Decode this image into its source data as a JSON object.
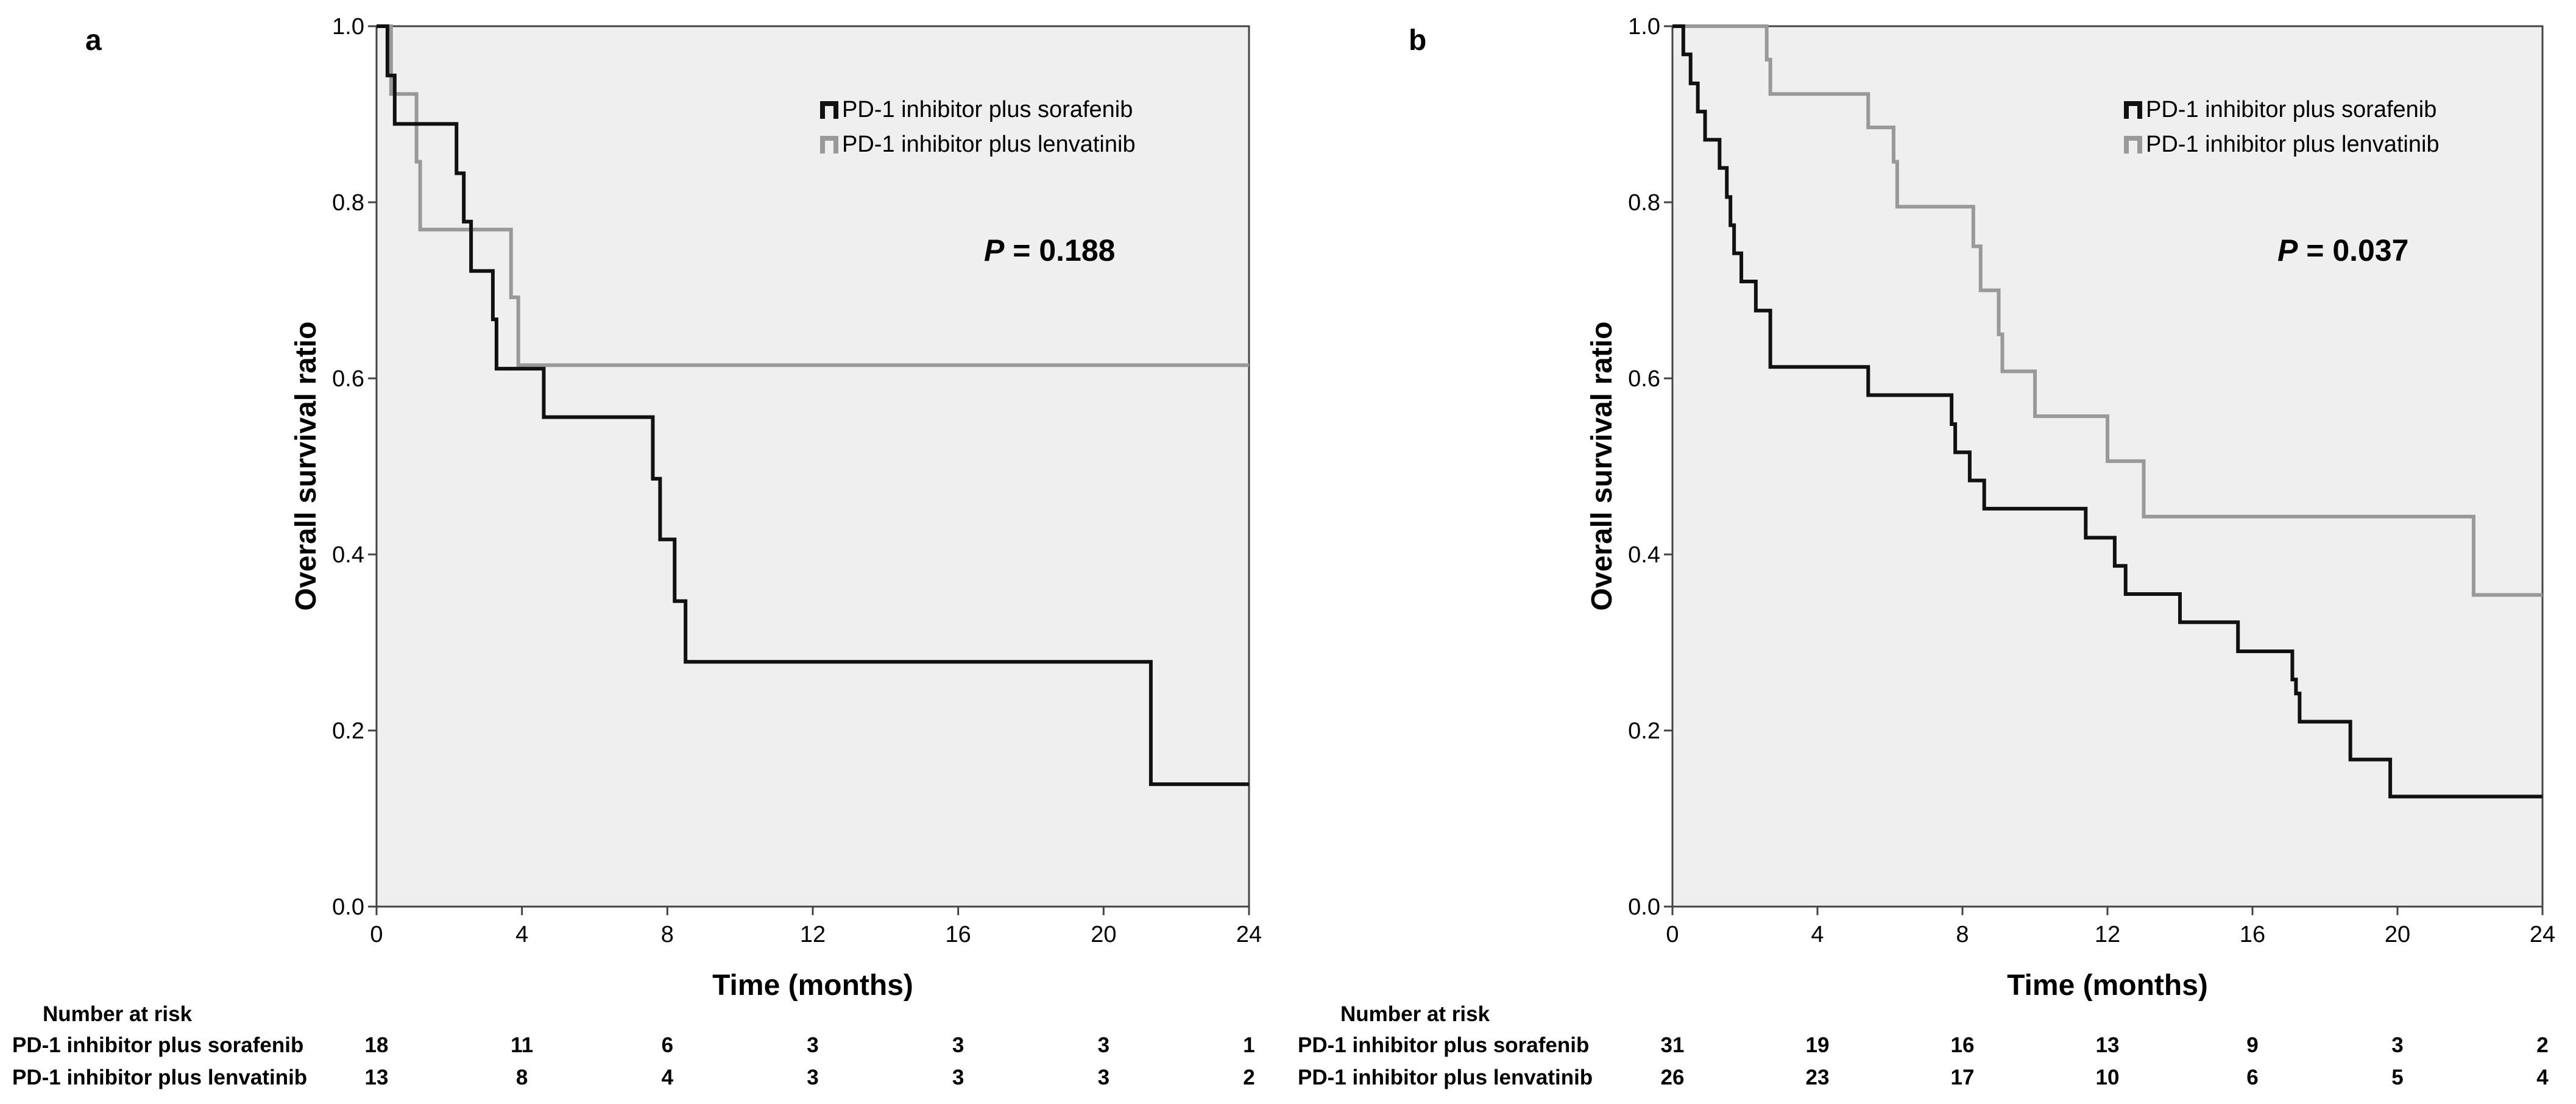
{
  "chart_data": [
    {
      "type": "line",
      "subtype": "kaplan-meier",
      "panel_label": "a",
      "xlabel": "Time (months)",
      "ylabel": "Overall survival ratio",
      "xlim": [
        0,
        24
      ],
      "ylim": [
        0,
        1.0
      ],
      "x_ticks": [
        0,
        4,
        8,
        12,
        16,
        20,
        24
      ],
      "y_ticks": [
        0.0,
        0.2,
        0.4,
        0.6,
        0.8,
        1.0
      ],
      "x_tick_labels": [
        "0",
        "4",
        "8",
        "12",
        "16",
        "20",
        "24"
      ],
      "y_tick_labels": [
        "0.0",
        "0.2",
        "0.4",
        "0.6",
        "0.8",
        "1.0"
      ],
      "p_value": {
        "label": "P",
        "text": " = 0.188"
      },
      "legend_position": "top-right",
      "series": [
        {
          "name": "PD-1 inhibitor plus sorafenib",
          "color": "#111111",
          "steps": [
            [
              0,
              1.0
            ],
            [
              0.3,
              0.944
            ],
            [
              0.5,
              0.889
            ],
            [
              2.2,
              0.833
            ],
            [
              2.4,
              0.778
            ],
            [
              2.6,
              0.722
            ],
            [
              3.2,
              0.667
            ],
            [
              3.3,
              0.611
            ],
            [
              4.6,
              0.556
            ],
            [
              7.6,
              0.486
            ],
            [
              7.8,
              0.417
            ],
            [
              8.2,
              0.347
            ],
            [
              8.5,
              0.278
            ],
            [
              21.3,
              0.139
            ],
            [
              24,
              0.139
            ]
          ]
        },
        {
          "name": "PD-1 inhibitor plus lenvatinib",
          "color": "#999999",
          "steps": [
            [
              0,
              1.0
            ],
            [
              0.4,
              0.923
            ],
            [
              1.1,
              0.846
            ],
            [
              1.2,
              0.769
            ],
            [
              3.7,
              0.692
            ],
            [
              3.9,
              0.615
            ],
            [
              24,
              0.615
            ]
          ]
        }
      ],
      "risk_table": {
        "title": "Number at risk",
        "times": [
          0,
          4,
          8,
          12,
          16,
          20,
          24
        ],
        "rows": [
          {
            "label": "PD-1 inhibitor plus sorafenib",
            "values": [
              "18",
              "11",
              "6",
              "3",
              "3",
              "3",
              "1"
            ]
          },
          {
            "label": "PD-1 inhibitor plus lenvatinib",
            "values": [
              "13",
              "8",
              "4",
              "3",
              "3",
              "3",
              "2"
            ]
          }
        ]
      }
    },
    {
      "type": "line",
      "subtype": "kaplan-meier",
      "panel_label": "b",
      "xlabel": "Time (months)",
      "ylabel": "Overall survival ratio",
      "xlim": [
        0,
        24
      ],
      "ylim": [
        0,
        1.0
      ],
      "x_ticks": [
        0,
        4,
        8,
        12,
        16,
        20,
        24
      ],
      "y_ticks": [
        0.0,
        0.2,
        0.4,
        0.6,
        0.8,
        1.0
      ],
      "x_tick_labels": [
        "0",
        "4",
        "8",
        "12",
        "16",
        "20",
        "24"
      ],
      "y_tick_labels": [
        "0.0",
        "0.2",
        "0.4",
        "0.6",
        "0.8",
        "1.0"
      ],
      "p_value": {
        "label": "P",
        "text": " = 0.037"
      },
      "legend_position": "top-right",
      "series": [
        {
          "name": "PD-1 inhibitor plus sorafenib",
          "color": "#111111",
          "steps": [
            [
              0,
              1.0
            ],
            [
              0.3,
              0.968
            ],
            [
              0.5,
              0.935
            ],
            [
              0.7,
              0.903
            ],
            [
              0.9,
              0.871
            ],
            [
              1.3,
              0.839
            ],
            [
              1.5,
              0.806
            ],
            [
              1.6,
              0.774
            ],
            [
              1.7,
              0.742
            ],
            [
              1.9,
              0.71
            ],
            [
              2.3,
              0.677
            ],
            [
              2.7,
              0.613
            ],
            [
              5.4,
              0.581
            ],
            [
              7.7,
              0.548
            ],
            [
              7.8,
              0.516
            ],
            [
              8.2,
              0.484
            ],
            [
              8.6,
              0.452
            ],
            [
              11.4,
              0.419
            ],
            [
              12.2,
              0.387
            ],
            [
              12.5,
              0.355
            ],
            [
              14.0,
              0.323
            ],
            [
              15.6,
              0.29
            ],
            [
              17.1,
              0.258
            ],
            [
              17.2,
              0.242
            ],
            [
              17.3,
              0.21
            ],
            [
              18.7,
              0.167
            ],
            [
              19.8,
              0.125
            ],
            [
              24,
              0.125
            ]
          ]
        },
        {
          "name": "PD-1 inhibitor plus lenvatinib",
          "color": "#999999",
          "steps": [
            [
              0,
              1.0
            ],
            [
              2.6,
              0.962
            ],
            [
              2.7,
              0.923
            ],
            [
              5.4,
              0.885
            ],
            [
              6.1,
              0.846
            ],
            [
              6.2,
              0.795
            ],
            [
              8.3,
              0.75
            ],
            [
              8.5,
              0.7
            ],
            [
              9.0,
              0.65
            ],
            [
              9.1,
              0.608
            ],
            [
              10.0,
              0.557
            ],
            [
              12.0,
              0.506
            ],
            [
              13.0,
              0.443
            ],
            [
              22.1,
              0.354
            ],
            [
              24,
              0.354
            ]
          ]
        }
      ],
      "risk_table": {
        "title": "Number at risk",
        "times": [
          0,
          4,
          8,
          12,
          16,
          20,
          24
        ],
        "rows": [
          {
            "label": "PD-1 inhibitor plus sorafenib",
            "values": [
              "31",
              "19",
              "16",
              "13",
              "9",
              "3",
              "2"
            ]
          },
          {
            "label": "PD-1 inhibitor plus lenvatinib",
            "values": [
              "26",
              "23",
              "17",
              "10",
              "6",
              "5",
              "4"
            ]
          }
        ]
      }
    }
  ]
}
